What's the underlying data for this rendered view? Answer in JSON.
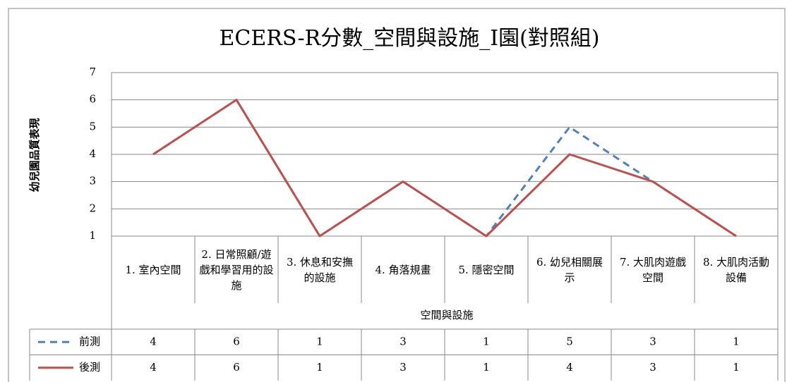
{
  "chart_data": {
    "type": "line",
    "title": "ECERS-R分數_空間與設施_I園(對照組)",
    "x_label": "空間與設施",
    "y_label": "幼兒園品質表現",
    "categories": [
      "1. 室內空間",
      "2. 日常照顧/遊戲和學習用的設施",
      "3. 休息和安撫的設施",
      "4. 角落規畫",
      "5. 隱密空間",
      "6. 幼兒相關展示",
      "7. 大肌肉遊戲空間",
      "8. 大肌肉活動設備"
    ],
    "series": [
      {
        "name": "前測",
        "color": "#4f81bd",
        "dashed": true,
        "values": [
          4,
          6,
          1,
          3,
          1,
          5,
          3,
          1
        ]
      },
      {
        "name": "後測",
        "color": "#c0504d",
        "dashed": false,
        "values": [
          4,
          6,
          1,
          3,
          1,
          4,
          3,
          1
        ]
      }
    ],
    "ylim": [
      1,
      7
    ],
    "yticks": [
      1,
      2,
      3,
      4,
      5,
      6,
      7
    ],
    "grid": true
  }
}
